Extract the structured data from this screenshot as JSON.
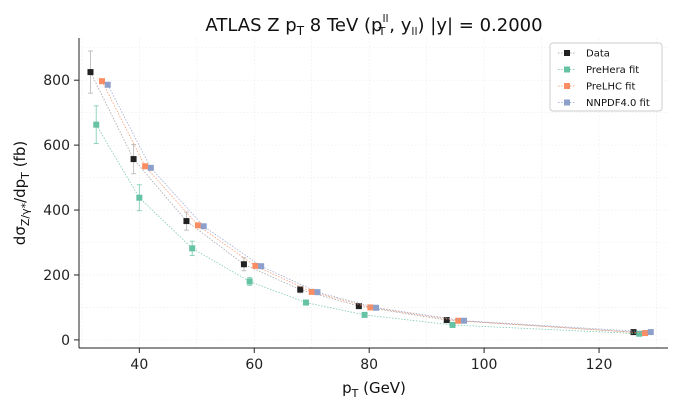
{
  "chart_data": {
    "type": "scatter",
    "title": "ATLAS Z p_T 8 TeV (p_T^ll, y_ll) |y| = 0.2000",
    "title_parts": {
      "lead": "ATLAS Z p",
      "lead_sub": "T",
      "mid": " 8 TeV (p",
      "mid_sup": "ll",
      "mid_sub": "T",
      "y_text": ", y",
      "y_sub": "ll",
      "tail": ") |y| = 0.2000"
    },
    "xlabel": "p_T (GeV)",
    "xlabel_parts": {
      "main": "p",
      "sub": "T",
      "unit": " (GeV)"
    },
    "ylabel": "dσ_Z/γ*/dp_T (fb)",
    "ylabel_parts": {
      "a": "dσ",
      "a_sub": "Z/γ*",
      "b": "/dp",
      "b_sub": "T",
      "unit": " (fb)"
    },
    "xlim": [
      29.5,
      132
    ],
    "ylim": [
      -25,
      930
    ],
    "xticks": [
      40,
      60,
      80,
      100,
      120
    ],
    "yticks": [
      0,
      200,
      400,
      600,
      800
    ],
    "grid": true,
    "legend_position": "top-right",
    "series": [
      {
        "name": "Data",
        "color": "#222222",
        "line_color": "#999999",
        "x": [
          31.5,
          39.0,
          48.2,
          58.2,
          68.0,
          78.2,
          93.5,
          126.0
        ],
        "y": [
          825,
          557,
          366,
          233,
          155,
          104,
          61,
          24
        ],
        "yerr": [
          65,
          45,
          28,
          20,
          10,
          7,
          5,
          3
        ]
      },
      {
        "name": "PreHera fit",
        "color": "#66c2a5",
        "line_color": "#66c2a5",
        "x": [
          32.5,
          40.0,
          49.2,
          59.2,
          69.0,
          79.2,
          94.5,
          127.0
        ],
        "y": [
          663,
          438,
          282,
          180,
          115,
          77,
          46,
          19
        ],
        "yerr": [
          58,
          40,
          22,
          12,
          7,
          5,
          3,
          2
        ]
      },
      {
        "name": "PreLHC fit",
        "color": "#fc8d62",
        "line_color": "#fc8d62",
        "x": [
          33.5,
          41.0,
          50.2,
          60.2,
          70.0,
          80.2,
          95.5,
          128.0
        ],
        "y": [
          797,
          535,
          353,
          228,
          148,
          100,
          59,
          21
        ],
        "yerr": [
          6,
          5,
          4,
          3,
          2,
          2,
          1,
          1
        ]
      },
      {
        "name": "NNPDF4.0 fit",
        "color": "#8da0cb",
        "line_color": "#8da0cb",
        "x": [
          34.5,
          42.0,
          51.2,
          61.2,
          71.0,
          81.2,
          96.5,
          129.0
        ],
        "y": [
          786,
          530,
          350,
          227,
          147,
          99,
          59,
          24
        ],
        "yerr": [
          6,
          5,
          4,
          3,
          2,
          2,
          1,
          1
        ]
      }
    ]
  }
}
